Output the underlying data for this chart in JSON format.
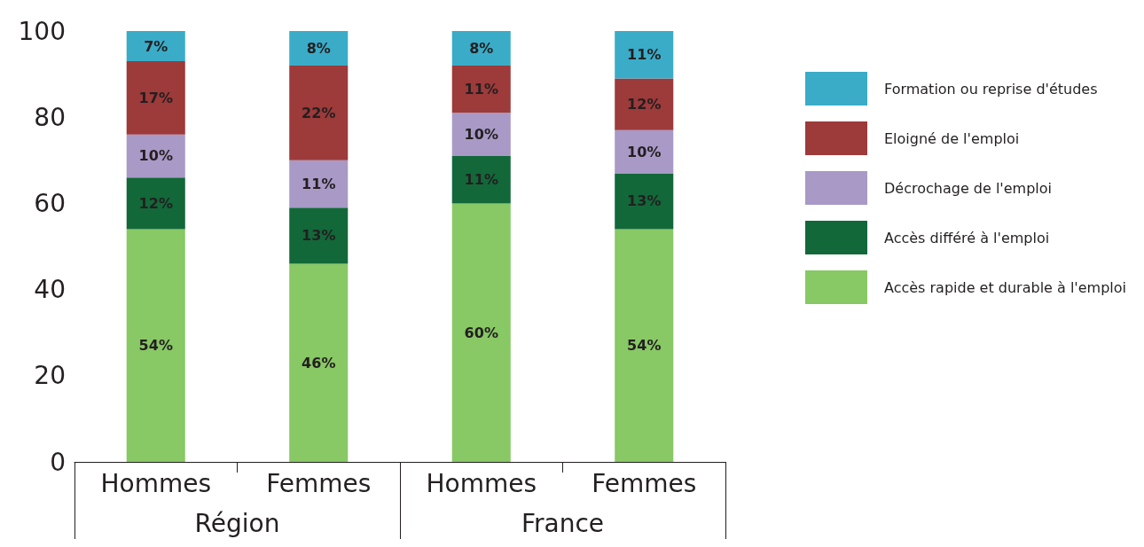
{
  "chart_data": {
    "type": "bar",
    "stacked": true,
    "categories": [
      "Hommes",
      "Femmes",
      "Hommes",
      "Femmes"
    ],
    "annotations": [
      "Région",
      "France"
    ],
    "series": [
      {
        "name": "Accès rapide et durable à l'emploi",
        "color": "#88c865",
        "values": [
          54,
          46,
          60,
          54
        ],
        "value_labels": [
          "54%",
          "46%",
          "60%",
          "54%"
        ]
      },
      {
        "name": "Accès différé à l'emploi",
        "color": "#126839",
        "values": [
          12,
          13,
          11,
          13
        ],
        "value_labels": [
          "12%",
          "13%",
          "11%",
          "13%"
        ]
      },
      {
        "name": "Décrochage de l'emploi",
        "color": "#a899c6",
        "values": [
          10,
          11,
          10,
          10
        ],
        "value_labels": [
          "10%",
          "11%",
          "10%",
          "10%"
        ]
      },
      {
        "name": "Eloigné de l'emploi",
        "color": "#9d3a3a",
        "values": [
          17,
          22,
          11,
          12
        ],
        "value_labels": [
          "17%",
          "22%",
          "11%",
          "12%"
        ]
      },
      {
        "name": "Formation ou reprise d'études",
        "color": "#3aacc8",
        "values": [
          7,
          8,
          8,
          11
        ],
        "value_labels": [
          "7%",
          "8%",
          "8%",
          "11%"
        ]
      }
    ],
    "ylim": [
      0,
      100
    ],
    "yticks": [
      0,
      20,
      40,
      60,
      80,
      100
    ],
    "legend": "right",
    "grid": false
  }
}
